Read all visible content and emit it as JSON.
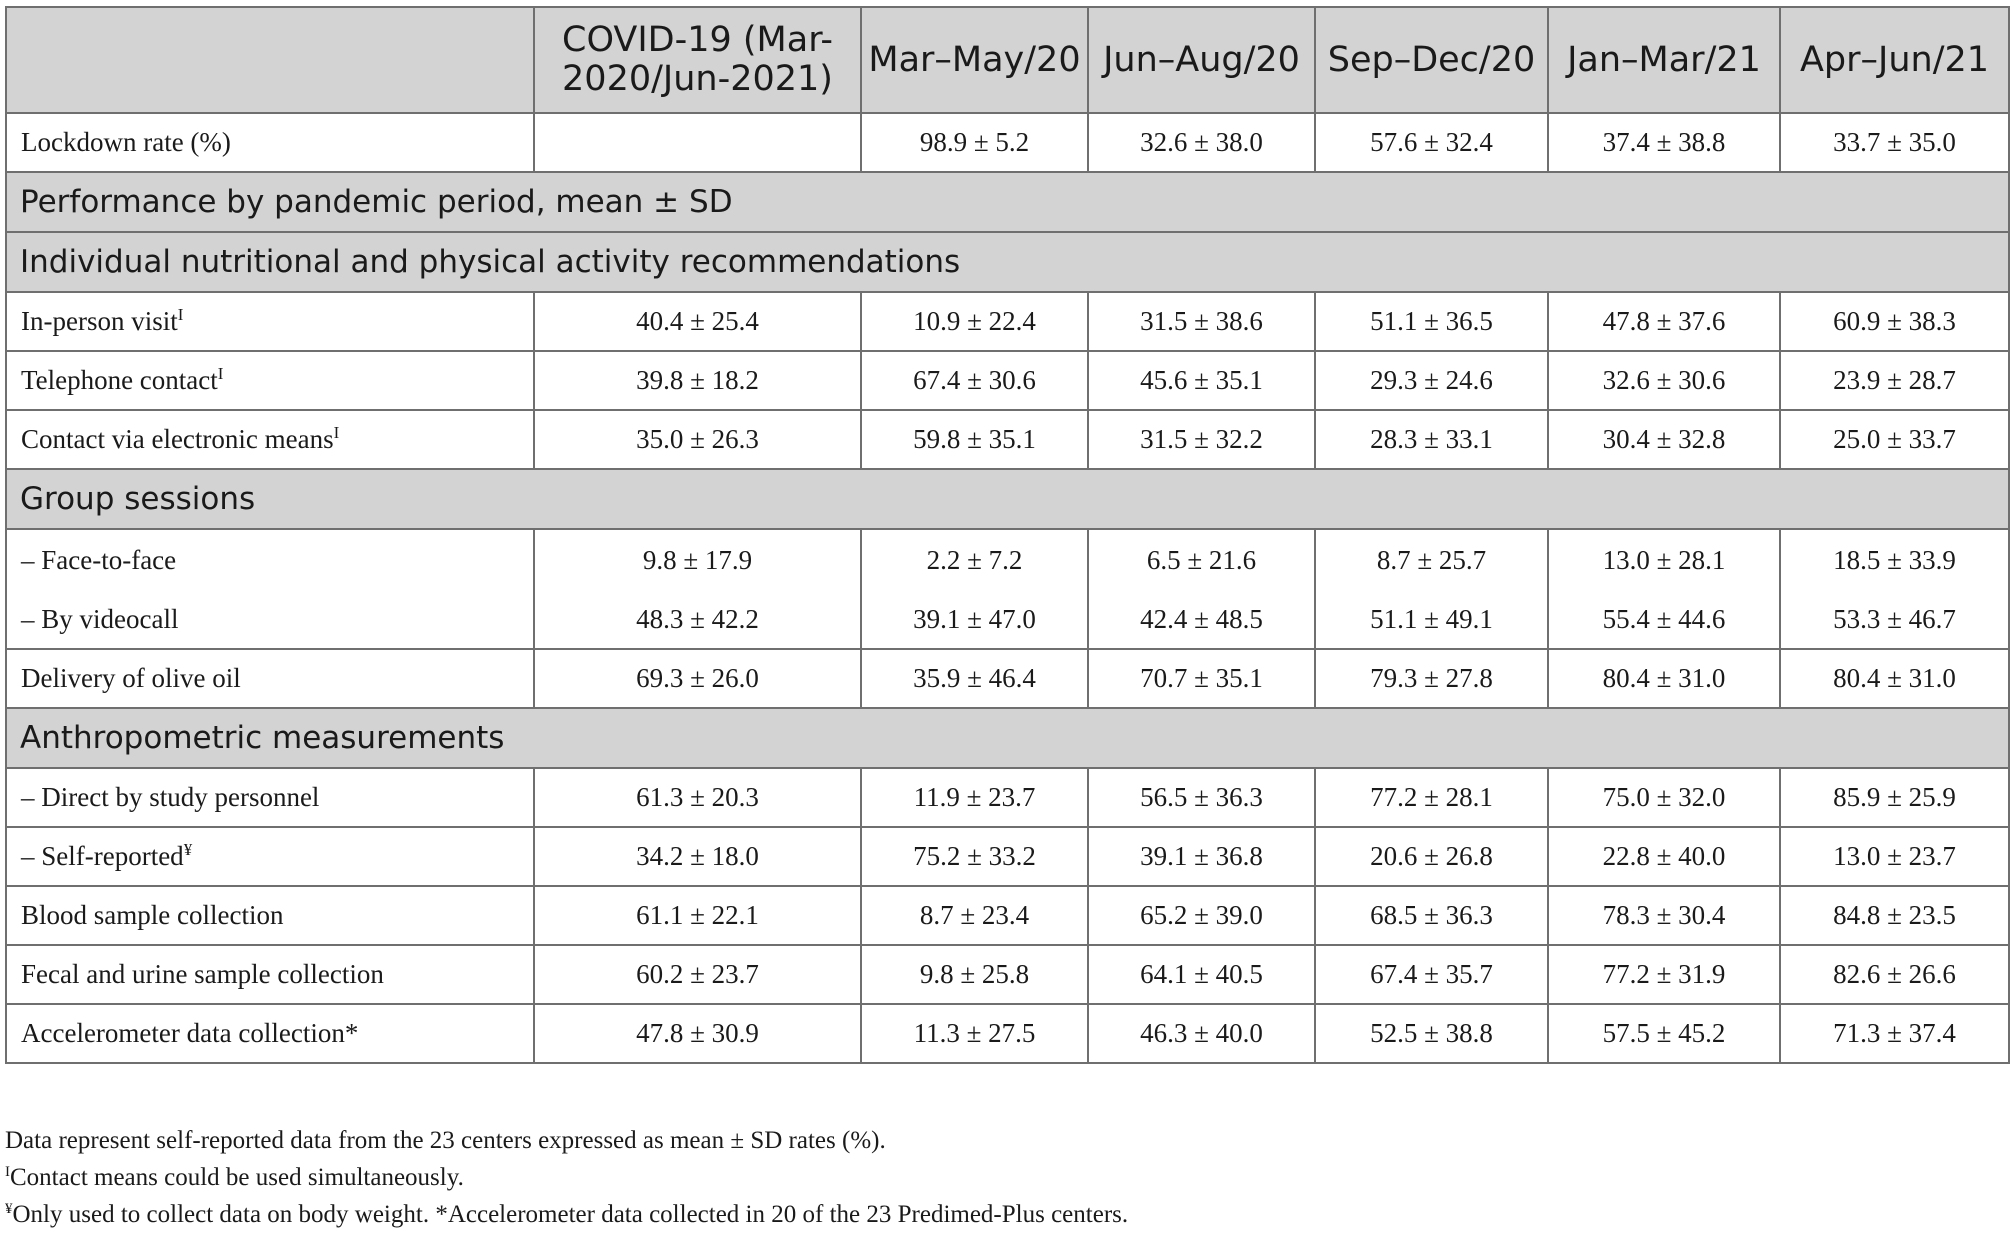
{
  "header": {
    "blank": "",
    "columns": [
      "COVID-19 (Mar-2020/Jun-2021)",
      "Mar–May/20",
      "Jun–Aug/20",
      "Sep–Dec/20",
      "Jan–Mar/21",
      "Apr–Jun/21"
    ]
  },
  "rows": {
    "lockdown": {
      "label": "Lockdown rate (%)",
      "values": [
        "",
        "98.9 ± 5.2",
        "32.6 ± 38.0",
        "57.6 ± 32.4",
        "37.4 ± 38.8",
        "33.7 ± 35.0"
      ]
    },
    "section_performance": "Performance by pandemic period, mean ± SD",
    "section_individual": "Individual nutritional and physical activity recommendations",
    "inperson": {
      "label": "In-person visit",
      "mark": "I",
      "values": [
        "40.4 ± 25.4",
        "10.9 ± 22.4",
        "31.5 ± 38.6",
        "51.1 ± 36.5",
        "47.8 ± 37.6",
        "60.9 ± 38.3"
      ]
    },
    "telephone": {
      "label": "Telephone contact",
      "mark": "I",
      "values": [
        "39.8 ± 18.2",
        "67.4 ± 30.6",
        "45.6 ± 35.1",
        "29.3 ± 24.6",
        "32.6 ± 30.6",
        "23.9 ± 28.7"
      ]
    },
    "electronic": {
      "label": "Contact via electronic means",
      "mark": "I",
      "values": [
        "35.0 ± 26.3",
        "59.8 ± 35.1",
        "31.5 ± 32.2",
        "28.3 ± 33.1",
        "30.4 ± 32.8",
        "25.0 ± 33.7"
      ]
    },
    "section_group": "Group sessions",
    "face": {
      "label": "– Face-to-face",
      "values": [
        "9.8 ± 17.9",
        "2.2 ± 7.2",
        "6.5 ± 21.6",
        "8.7 ± 25.7",
        "13.0 ± 28.1",
        "18.5 ± 33.9"
      ]
    },
    "video": {
      "label": "– By videocall",
      "values": [
        "48.3 ± 42.2",
        "39.1 ± 47.0",
        "42.4 ± 48.5",
        "51.1 ± 49.1",
        "55.4 ± 44.6",
        "53.3 ± 46.7"
      ]
    },
    "olive": {
      "label": "Delivery of olive oil",
      "values": [
        "69.3 ± 26.0",
        "35.9 ± 46.4",
        "70.7 ± 35.1",
        "79.3 ± 27.8",
        "80.4 ± 31.0",
        "80.4 ± 31.0"
      ]
    },
    "section_anthro": "Anthropometric measurements",
    "direct": {
      "label": "– Direct by study personnel",
      "values": [
        "61.3 ± 20.3",
        "11.9 ± 23.7",
        "56.5 ± 36.3",
        "77.2 ± 28.1",
        "75.0 ± 32.0",
        "85.9 ± 25.9"
      ]
    },
    "selfrep": {
      "label": "– Self-reported",
      "mark": "¥",
      "values": [
        "34.2 ± 18.0",
        "75.2 ± 33.2",
        "39.1 ± 36.8",
        "20.6 ± 26.8",
        "22.8 ± 40.0",
        "13.0 ± 23.7"
      ]
    },
    "blood": {
      "label": "Blood sample collection",
      "values": [
        "61.1 ± 22.1",
        "8.7 ± 23.4",
        "65.2 ± 39.0",
        "68.5 ± 36.3",
        "78.3 ± 30.4",
        "84.8 ± 23.5"
      ]
    },
    "fecal": {
      "label": "Fecal and urine sample collection",
      "values": [
        "60.2 ± 23.7",
        "9.8 ± 25.8",
        "64.1 ± 40.5",
        "67.4 ± 35.7",
        "77.2 ± 31.9",
        "82.6 ± 26.6"
      ]
    },
    "accel": {
      "label": "Accelerometer data collection*",
      "values": [
        "47.8 ± 30.9",
        "11.3 ± 27.5",
        "46.3 ± 40.0",
        "52.5 ± 38.8",
        "57.5 ± 45.2",
        "71.3 ± 37.4"
      ]
    }
  },
  "notes": {
    "line1": "Data represent self-reported data from the 23 centers expressed as mean ± SD rates (%).",
    "line2_mark": "I",
    "line2": "Contact means could be used simultaneously.",
    "line3_mark": "¥",
    "line3": "Only used to collect data on body weight. *Accelerometer data collected in 20 of the 23 Predimed-Plus centers."
  }
}
